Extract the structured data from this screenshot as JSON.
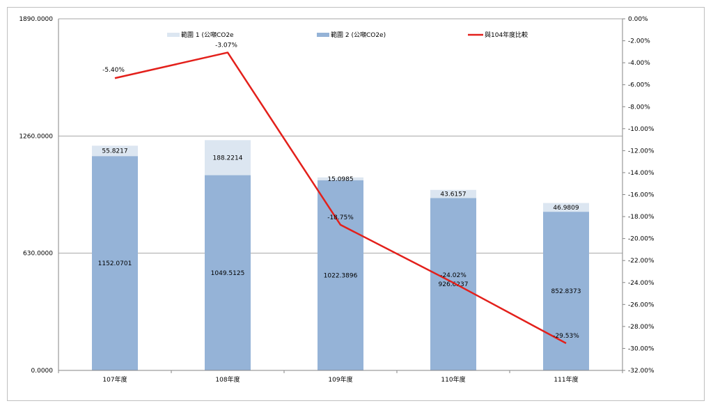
{
  "chart_data": {
    "type": "bar",
    "stacked": true,
    "categories": [
      "107年度",
      "108年度",
      "109年度",
      "110年度",
      "111年度"
    ],
    "series": [
      {
        "name": "範圍 2 (公噸CO2e)",
        "values": [
          1152.0701,
          1049.5125,
          1022.3896,
          926.6237,
          852.8373
        ],
        "labels": [
          "1152.0701",
          "1049.5125",
          "1022.3896",
          "926.6237",
          "852.8373"
        ],
        "color": "#95b3d7"
      },
      {
        "name": "範圍 1 (公噸CO2e",
        "values": [
          55.8217,
          188.2214,
          15.0985,
          43.6157,
          46.9809
        ],
        "labels": [
          "55.8217",
          "188.2214",
          "15.0985",
          "43.6157",
          "46.9809"
        ],
        "color": "#dce6f1"
      }
    ],
    "line_series": {
      "name": "與104年度比較",
      "axis": "secondary",
      "values": [
        -5.4,
        -3.07,
        -18.75,
        -24.02,
        -29.53
      ],
      "labels": [
        "-5.40%",
        "-3.07%",
        "-18.75%",
        "-24.02%",
        "-29.53%"
      ],
      "color": "#e3201b"
    },
    "y_axis": {
      "ylim": [
        0,
        1890
      ],
      "ticks": [
        0,
        630,
        1260,
        1890
      ],
      "tick_labels": [
        "0.0000",
        "630.0000",
        "1260.0000",
        "1890.0000"
      ]
    },
    "y2_axis": {
      "ylim": [
        -32,
        0
      ],
      "ticks": [
        0,
        -2,
        -4,
        -6,
        -8,
        -10,
        -12,
        -14,
        -16,
        -18,
        -20,
        -22,
        -24,
        -26,
        -28,
        -30,
        -32
      ],
      "tick_labels": [
        "0.00%",
        "-2.00%",
        "-4.00%",
        "-6.00%",
        "-8.00%",
        "-10.00%",
        "-12.00%",
        "-14.00%",
        "-16.00%",
        "-18.00%",
        "-20.00%",
        "-22.00%",
        "-24.00%",
        "-26.00%",
        "-28.00%",
        "-30.00%",
        "-32.00%"
      ]
    },
    "grid": "horizontal major on primary axis",
    "legend_placement": "top",
    "legend": [
      "範圍 1 (公噸CO2e",
      "範圍 2 (公噸CO2e)",
      "與104年度比較"
    ]
  }
}
